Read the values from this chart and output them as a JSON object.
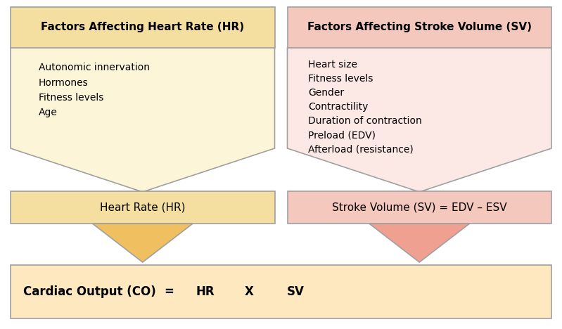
{
  "bg_color": "#ffffff",
  "left_header_fill": "#f5dfa0",
  "left_body_fill": "#fdf5d8",
  "left_result_fill": "#f5dfa0",
  "left_small_arrow_fill": "#f0c060",
  "right_header_fill": "#f5c8be",
  "right_body_fill": "#fce8e4",
  "right_result_fill": "#f5c8be",
  "right_small_arrow_fill": "#f0a090",
  "bottom_box_fill": "#fde8c0",
  "border_color": "#a0a0a0",
  "text_color": "#000000",
  "left_header_text": "Factors Affecting Heart Rate (HR)",
  "right_header_text": "Factors Affecting Stroke Volume (SV)",
  "left_items": [
    "Autonomic innervation",
    "Hormones",
    "Fitness levels",
    "Age"
  ],
  "right_items": [
    "Heart size",
    "Fitness levels",
    "Gender",
    "Contractility",
    "Duration of contraction",
    "Preload (EDV)",
    "Afterload (resistance)"
  ],
  "left_result_text": "Heart Rate (HR)",
  "right_result_text": "Stroke Volume (SV) = EDV – ESV",
  "bottom_label": "Cardiac Output (CO)",
  "bottom_eq": "=",
  "bottom_hr": "HR",
  "bottom_x": "X",
  "bottom_sv": "SV",
  "figw": 7.99,
  "figh": 4.68,
  "dpi": 100
}
